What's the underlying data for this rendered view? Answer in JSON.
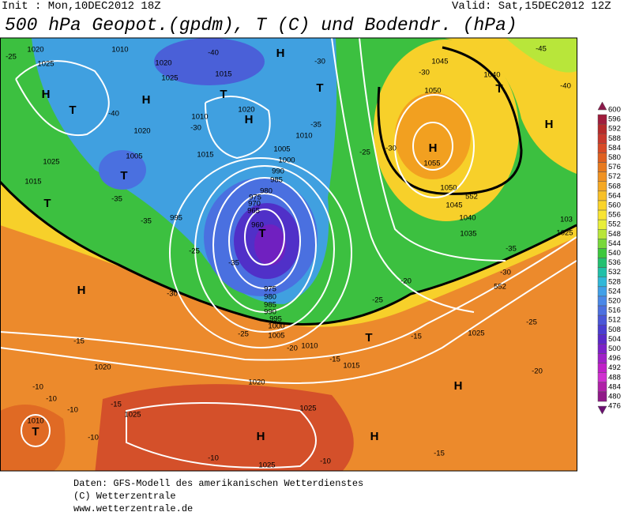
{
  "header": {
    "init": "Init : Mon,10DEC2012 18Z",
    "valid": "Valid: Sat,15DEC2012 12Z",
    "title": "500 hPa Geopot.(gpdm), T (C) und Bodendr. (hPa)"
  },
  "colorbar": {
    "ticks": [
      600,
      596,
      592,
      588,
      584,
      580,
      576,
      572,
      568,
      564,
      560,
      556,
      552,
      548,
      544,
      540,
      536,
      532,
      528,
      524,
      520,
      516,
      512,
      508,
      504,
      500,
      496,
      492,
      488,
      484,
      480,
      476
    ],
    "colors": [
      "#8b1a4a",
      "#a01c3c",
      "#b52a2a",
      "#c8382c",
      "#d84a26",
      "#e06020",
      "#e87a1e",
      "#f09222",
      "#f5a823",
      "#f8c027",
      "#fad42a",
      "#f8e432",
      "#e8ef3a",
      "#b8e63a",
      "#78d83a",
      "#3cc83c",
      "#22c070",
      "#20c0a8",
      "#30b8d8",
      "#40a0e8",
      "#4a88e8",
      "#4c70e0",
      "#4a56d8",
      "#4a3cd0",
      "#5a28c8",
      "#7c20c8",
      "#a020c8",
      "#c020c8",
      "#d030d0",
      "#b020a8",
      "#901888",
      "#6a1070"
    ]
  },
  "map_labels": [
    "1020",
    "1010",
    "-40",
    "H",
    "-25",
    "1025",
    "1020",
    "1025",
    "1015",
    "H",
    "T",
    "H",
    "T",
    "-40",
    "1020",
    "H",
    "1010",
    "-30",
    "-35",
    "1020",
    "1005",
    "1010",
    "1025",
    "1005",
    "T",
    "1000",
    "990",
    "985",
    "1015",
    "1015",
    "T",
    "-35",
    "-35",
    "980",
    "975",
    "970",
    "965",
    "995",
    "960",
    "T",
    "-25",
    "-35",
    "H",
    "-30",
    "975",
    "980",
    "985",
    "990",
    "995",
    "1000",
    "1005",
    "-25",
    "1010",
    "T",
    "-15",
    "-20",
    "1015",
    "-15",
    "1020",
    "1020",
    "-10",
    "-10",
    "-10",
    "-15",
    "1025",
    "1025",
    "H",
    "1010",
    "T",
    "-10",
    "H",
    "H",
    "-10",
    "-10",
    "1025",
    "-15",
    "1045",
    "-30",
    "1040",
    "T",
    "-40",
    "1050",
    "H",
    "-30",
    "H",
    "1055",
    "1050",
    "552",
    "1045",
    "1040",
    "1035",
    "-35",
    "-30",
    "552",
    "-20",
    "-25",
    "-25",
    "-15",
    "1025",
    "-20",
    "1025",
    "103",
    "-45",
    "-25",
    "T",
    "-30"
  ],
  "footer": {
    "lines": [
      "Daten: GFS-Modell des amerikanischen Wetterdienstes",
      "(C) Wetterzentrale",
      "www.wetterzentrale.de"
    ]
  }
}
